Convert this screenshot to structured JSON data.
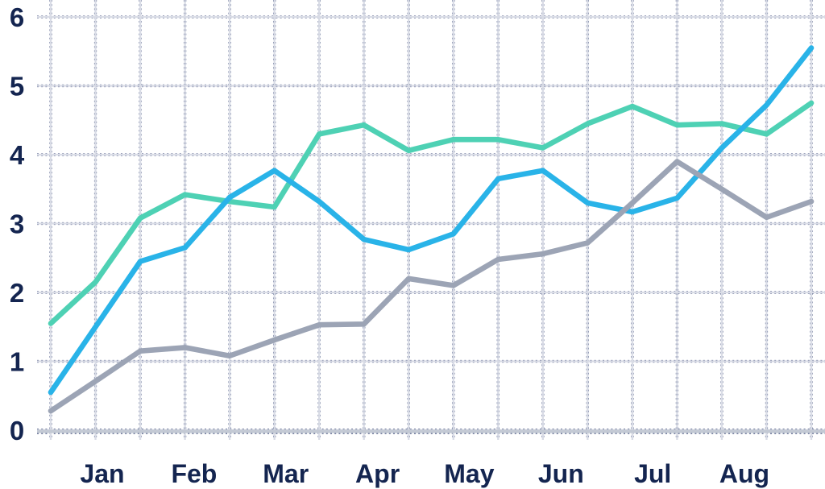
{
  "chart_data": {
    "type": "line",
    "title": "",
    "xlabel": "",
    "ylabel": "",
    "x_tick_labels": [
      "Jan",
      "Feb",
      "Mar",
      "Apr",
      "May",
      "Jun",
      "Jul",
      "Aug"
    ],
    "y_tick_labels": [
      "6",
      "5",
      "4",
      "3",
      "2",
      "1",
      "0"
    ],
    "ylim": [
      0,
      6
    ],
    "grid": true,
    "legend_position": "none",
    "points_per_month": 2,
    "num_points": 18,
    "series": [
      {
        "name": "teal",
        "color": "#4ed1b4",
        "values": [
          1.55,
          2.15,
          3.08,
          3.42,
          3.32,
          3.24,
          4.3,
          4.43,
          4.06,
          4.22,
          4.22,
          4.1,
          4.45,
          4.7,
          4.43,
          4.45,
          4.3,
          4.75
        ]
      },
      {
        "name": "cyan-blue",
        "color": "#29b3e8",
        "values": [
          0.55,
          1.5,
          2.45,
          2.65,
          3.38,
          3.77,
          3.32,
          2.77,
          2.62,
          2.85,
          3.65,
          3.77,
          3.3,
          3.17,
          3.37,
          4.1,
          4.72,
          5.55
        ]
      },
      {
        "name": "gray",
        "color": "#9ca4b5",
        "values": [
          0.28,
          0.71,
          1.15,
          1.2,
          1.08,
          1.31,
          1.53,
          1.54,
          2.2,
          2.1,
          2.48,
          2.56,
          2.72,
          3.3,
          3.9,
          3.5,
          3.09,
          3.32
        ]
      }
    ],
    "style": {
      "label_color": "#142550",
      "grid_light_color": "#d9dce6",
      "grid_dash_color": "#2b3b6d",
      "axis_light_color": "#c3c9d4"
    }
  }
}
